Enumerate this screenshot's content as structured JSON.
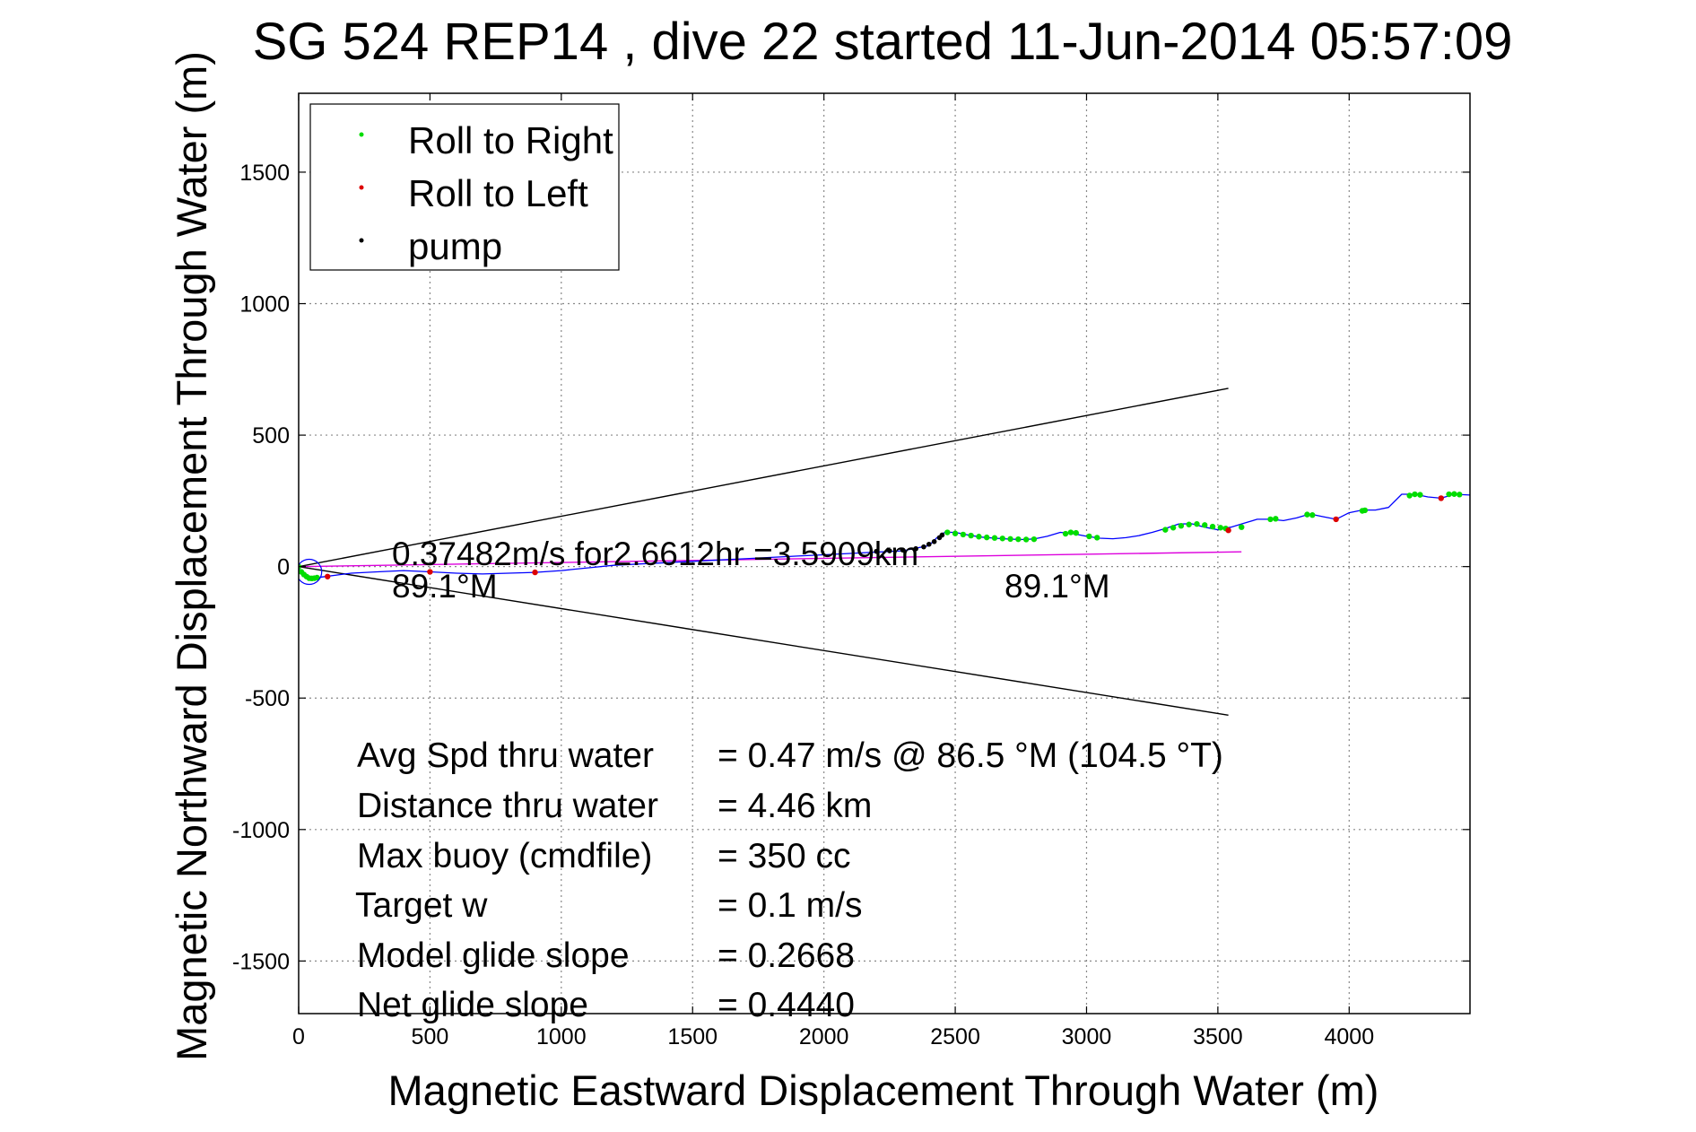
{
  "chart_data": {
    "type": "line",
    "title": "SG 524   REP14  , dive 22 started 11-Jun-2014 05:57:09",
    "xlabel": "Magnetic Eastward Displacement Through Water (m)",
    "ylabel": "Magnetic Northward Displacement Through Water (m)",
    "xlim": [
      0,
      4460
    ],
    "ylim": [
      -1700,
      1800
    ],
    "grid": true,
    "legend_placement": "top-left",
    "x_ticks": [
      0,
      500,
      1000,
      1500,
      2000,
      2500,
      3000,
      3500,
      4000
    ],
    "y_ticks": [
      -1500,
      -1000,
      -500,
      0,
      500,
      1000,
      1500
    ],
    "legend": [
      {
        "label": "Roll to Right",
        "color": "#00dd00"
      },
      {
        "label": "Roll to Left",
        "color": "#dd0000"
      },
      {
        "label": "pump",
        "color": "#000000"
      }
    ],
    "colors": {
      "track": "#0000ff",
      "roll_right": "#00dd00",
      "roll_left": "#dd0000",
      "pump": "#000000",
      "heading_line": "#dd00dd",
      "cone_lines": "#000000"
    },
    "series": [
      {
        "name": "track",
        "x": [
          0,
          5,
          20,
          50,
          100,
          200,
          300,
          400,
          500,
          600,
          700,
          800,
          900,
          1000,
          1100,
          1200,
          1300,
          1400,
          1500,
          1600,
          1700,
          1800,
          1900,
          2000,
          2100,
          2200,
          2300,
          2400,
          2430,
          2460,
          2500,
          2550,
          2600,
          2650,
          2700,
          2750,
          2800,
          2850,
          2900,
          2950,
          3000,
          3050,
          3100,
          3150,
          3200,
          3250,
          3300,
          3350,
          3400,
          3450,
          3500,
          3550,
          3600,
          3650,
          3700,
          3750,
          3800,
          3850,
          3900,
          3950,
          4000,
          4050,
          4100,
          4150,
          4200,
          4250,
          4300,
          4350,
          4400,
          4460
        ],
        "y": [
          0,
          -20,
          -38,
          -45,
          -38,
          -25,
          -20,
          -15,
          -20,
          -25,
          -28,
          -25,
          -22,
          -15,
          -5,
          5,
          10,
          15,
          20,
          25,
          30,
          35,
          40,
          45,
          50,
          55,
          60,
          80,
          110,
          130,
          130,
          120,
          112,
          108,
          105,
          103,
          105,
          115,
          130,
          125,
          115,
          108,
          106,
          110,
          118,
          130,
          145,
          162,
          163,
          150,
          140,
          150,
          165,
          180,
          180,
          175,
          185,
          200,
          190,
          180,
          205,
          215,
          215,
          225,
          275,
          275,
          265,
          260,
          275,
          272
        ]
      },
      {
        "name": "heading",
        "x": [
          0,
          3590
        ],
        "y": [
          0,
          56
        ]
      },
      {
        "name": "cone_upper",
        "x": [
          0,
          3540
        ],
        "y": [
          0,
          678
        ]
      },
      {
        "name": "cone_lower",
        "x": [
          0,
          3540
        ],
        "y": [
          0,
          -565
        ]
      }
    ],
    "roll_right_x": [
      0,
      10,
      20,
      30,
      40,
      50,
      60,
      70,
      2470,
      2500,
      2530,
      2560,
      2590,
      2620,
      2650,
      2680,
      2710,
      2740,
      2770,
      2800,
      2920,
      2940,
      2960,
      3010,
      3040,
      3300,
      3330,
      3360,
      3390,
      3420,
      3450,
      3480,
      3510,
      3530,
      3590,
      3700,
      3720,
      3840,
      3860,
      4050,
      4060,
      4230,
      4250,
      4270,
      4380,
      4400,
      4420
    ],
    "roll_right_y": [
      0,
      -20,
      -30,
      -38,
      -44,
      -45,
      -44,
      -42,
      130,
      126,
      122,
      118,
      114,
      111,
      109,
      107,
      105,
      104,
      103,
      104,
      125,
      130,
      128,
      115,
      110,
      140,
      148,
      155,
      160,
      162,
      158,
      152,
      148,
      145,
      150,
      180,
      182,
      198,
      196,
      212,
      214,
      270,
      275,
      273,
      275,
      276,
      274
    ],
    "roll_left_x": [
      110,
      500,
      900,
      3540,
      3950,
      4350
    ],
    "roll_left_y": [
      -38,
      -20,
      -22,
      138,
      180,
      260
    ],
    "pump_x": [
      2200,
      2250,
      2300,
      2350,
      2380,
      2400,
      2420,
      2440,
      2450
    ],
    "pump_y": [
      58,
      60,
      63,
      68,
      75,
      85,
      95,
      110,
      120
    ],
    "annotations": {
      "speed_text": "0.37482m/s for2.6612hr =3.5909km",
      "heading_left": "89.1°M",
      "heading_right": "89.1°M"
    },
    "stats": [
      {
        "label": "Avg Spd thru water",
        "value": "=  0.47 m/s @  86.5 °M (104.5 °T)"
      },
      {
        "label": "Distance thru water",
        "value": "=  4.46 km"
      },
      {
        "label": "Max buoy (cmdfile)",
        "value": "= 350 cc"
      },
      {
        "label": "Target w",
        "value": "= 0.1 m/s"
      },
      {
        "label": "Model glide slope",
        "value": "= 0.2668"
      },
      {
        "label": "Net glide slope",
        "value": "= 0.4440"
      }
    ]
  }
}
